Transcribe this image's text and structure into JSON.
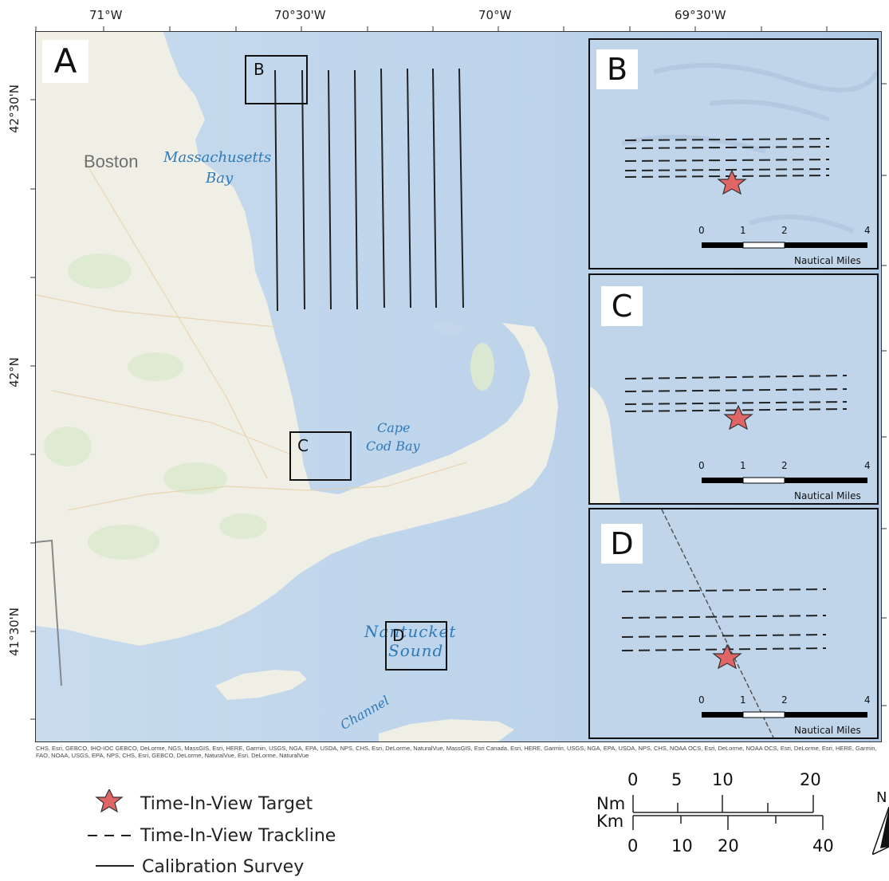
{
  "longitude_labels": [
    "71°W",
    "70°30'W",
    "70°W",
    "69°30'W"
  ],
  "latitude_labels": [
    "42°30'N",
    "42°N",
    "41°30'N"
  ],
  "main_map": {
    "panel_label": "A",
    "places": {
      "boston": "Boston",
      "mass_bay_1": "Massachusetts",
      "mass_bay_2": "Bay",
      "ccb_1": "Cape",
      "ccb_2": "Cod Bay",
      "nantucket_1": "Nantucket",
      "nantucket_2": "Sound",
      "channel": "Channel"
    },
    "box_labels": {
      "b": "B",
      "c": "C",
      "d": "D"
    }
  },
  "insets": [
    {
      "label": "B",
      "scale_ticks": [
        "0",
        "1",
        "2",
        "4"
      ],
      "scale_unit": "Nautical Miles"
    },
    {
      "label": "C",
      "scale_ticks": [
        "0",
        "1",
        "2",
        "4"
      ],
      "scale_unit": "Nautical Miles"
    },
    {
      "label": "D",
      "scale_ticks": [
        "0",
        "1",
        "2",
        "4"
      ],
      "scale_unit": "Nautical Miles"
    }
  ],
  "attribution": "CHS, Esri, GEBCO, IHO-IOC GEBCO, DeLorme, NGS, MassGIS, Esri, HERE, Garmin, USGS, NGA, EPA, USDA, NPS, CHS, Esri, DeLorme, NaturalVue, MassGIS, Esri Canada, Esri, HERE, Garmin, USGS, NGA, EPA, USDA, NPS, CHS, NOAA OCS, Esri, DeLorme, NOAA OCS, Esri, DeLorme, Esri, HERE, Garmin, FAO, NOAA, USGS, EPA, NPS, CHS, Esri, GEBCO, DeLorme, NaturalVue, Esri, DeLorme, NaturalVue",
  "legend": {
    "target": "Time-In-View Target",
    "trackline": "Time-In-View Trackline",
    "calibration": "Calibration Survey"
  },
  "main_scalebar": {
    "nm_label": "Nm",
    "km_label": "Km",
    "nm_ticks": [
      "0",
      "5",
      "10",
      "20"
    ],
    "km_ticks": [
      "0",
      "10",
      "20",
      "40"
    ]
  },
  "north_arrow": {
    "label": "N"
  },
  "colors": {
    "water": "#c3d6eb",
    "deep_water": "#b3cbe6",
    "land": "#f0efe6",
    "target_star": "#e06565",
    "track": "#222222"
  }
}
